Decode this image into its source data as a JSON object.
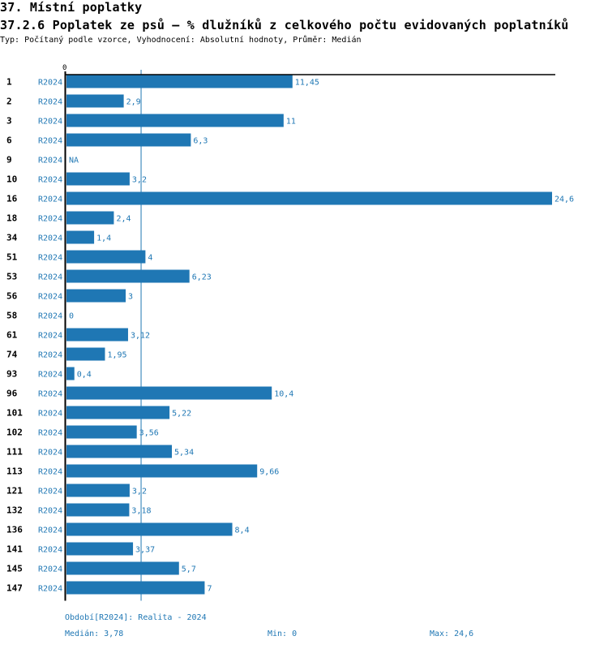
{
  "header": {
    "section_title": "37. Místní poplatky",
    "chart_title": "37.2.6 Poplatek ze psů – % dlužníků z celkového počtu evidovaných poplatníků",
    "subtitle": "Typ: Počítaný podle vzorce, Vyhodnocení: Absolutní hodnoty, Průměr: Medián"
  },
  "colors": {
    "bar": "#1f77b4",
    "label": "#1f77b4",
    "axis": "#000000",
    "median_line": "#1f77b4"
  },
  "chart_data": {
    "type": "bar",
    "orientation": "horizontal",
    "title": "37.2.6 Poplatek ze psů – % dlužníků z celkového počtu evidovaných poplatníků",
    "x_tick_labels": [
      "0"
    ],
    "xlim": [
      0,
      24.6
    ],
    "period_label": "R2024",
    "reference_line": {
      "name": "Medián",
      "value": 3.78
    },
    "rows": [
      {
        "id": "1",
        "period": "R2024",
        "value": 11.45,
        "label": "11,45"
      },
      {
        "id": "2",
        "period": "R2024",
        "value": 2.9,
        "label": "2,9"
      },
      {
        "id": "3",
        "period": "R2024",
        "value": 11,
        "label": "11"
      },
      {
        "id": "6",
        "period": "R2024",
        "value": 6.3,
        "label": "6,3"
      },
      {
        "id": "9",
        "period": "R2024",
        "value": null,
        "label": "NA"
      },
      {
        "id": "10",
        "period": "R2024",
        "value": 3.2,
        "label": "3,2"
      },
      {
        "id": "16",
        "period": "R2024",
        "value": 24.6,
        "label": "24,6"
      },
      {
        "id": "18",
        "period": "R2024",
        "value": 2.4,
        "label": "2,4"
      },
      {
        "id": "34",
        "period": "R2024",
        "value": 1.4,
        "label": "1,4"
      },
      {
        "id": "51",
        "period": "R2024",
        "value": 4,
        "label": "4"
      },
      {
        "id": "53",
        "period": "R2024",
        "value": 6.23,
        "label": "6,23"
      },
      {
        "id": "56",
        "period": "R2024",
        "value": 3,
        "label": "3"
      },
      {
        "id": "58",
        "period": "R2024",
        "value": 0,
        "label": "0"
      },
      {
        "id": "61",
        "period": "R2024",
        "value": 3.12,
        "label": "3,12"
      },
      {
        "id": "74",
        "period": "R2024",
        "value": 1.95,
        "label": "1,95"
      },
      {
        "id": "93",
        "period": "R2024",
        "value": 0.4,
        "label": "0,4"
      },
      {
        "id": "96",
        "period": "R2024",
        "value": 10.4,
        "label": "10,4"
      },
      {
        "id": "101",
        "period": "R2024",
        "value": 5.22,
        "label": "5,22"
      },
      {
        "id": "102",
        "period": "R2024",
        "value": 3.56,
        "label": "3,56"
      },
      {
        "id": "111",
        "period": "R2024",
        "value": 5.34,
        "label": "5,34"
      },
      {
        "id": "113",
        "period": "R2024",
        "value": 9.66,
        "label": "9,66"
      },
      {
        "id": "121",
        "period": "R2024",
        "value": 3.2,
        "label": "3,2"
      },
      {
        "id": "132",
        "period": "R2024",
        "value": 3.18,
        "label": "3,18"
      },
      {
        "id": "136",
        "period": "R2024",
        "value": 8.4,
        "label": "8,4"
      },
      {
        "id": "141",
        "period": "R2024",
        "value": 3.37,
        "label": "3,37"
      },
      {
        "id": "145",
        "period": "R2024",
        "value": 5.7,
        "label": "5,7"
      },
      {
        "id": "147",
        "period": "R2024",
        "value": 7,
        "label": "7"
      }
    ]
  },
  "footer": {
    "period_legend": "Období[R2024]: Realita - 2024",
    "median": "Medián: 3,78",
    "min": "Min: 0",
    "max": "Max: 24,6"
  }
}
